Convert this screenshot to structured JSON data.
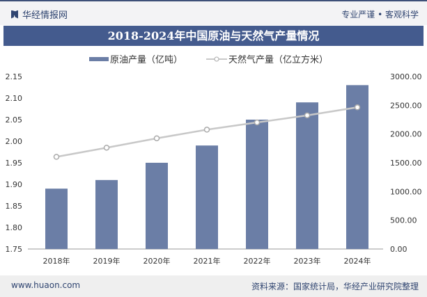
{
  "header": {
    "brand": "华经情报网",
    "slogan": "专业严谨 • 客观科学"
  },
  "footer": {
    "website": "www.huaon.com",
    "source": "资料来源：国家统计局，华经产业研究院整理"
  },
  "chart_data": {
    "type": "bar",
    "title": "2018-2024年中国原油与天然气产量情况",
    "categories": [
      "2018年",
      "2019年",
      "2020年",
      "2021年",
      "2022年",
      "2023年",
      "2024年"
    ],
    "series": [
      {
        "name": "原油产量（亿吨）",
        "type": "bar",
        "axis": "left",
        "color": "#6b7ea6",
        "values": [
          1.89,
          1.91,
          1.95,
          1.99,
          2.05,
          2.09,
          2.13
        ]
      },
      {
        "name": "天然气产量（亿立方米）",
        "type": "line",
        "axis": "right",
        "color": "#c8c8c8",
        "values": [
          1602.7,
          1761.7,
          1925.0,
          2075.8,
          2201.1,
          2324.3,
          2464.3
        ]
      }
    ],
    "left_axis": {
      "min": 1.75,
      "max": 2.15,
      "ticks": [
        "1.75",
        "1.80",
        "1.85",
        "1.90",
        "1.95",
        "2.00",
        "2.05",
        "2.10",
        "2.15"
      ]
    },
    "right_axis": {
      "min": 0,
      "max": 3000,
      "ticks": [
        "0.00",
        "500.00",
        "1000.00",
        "1500.00",
        "2000.00",
        "2500.00",
        "3000.00"
      ]
    },
    "grid": false,
    "legend": "top"
  }
}
